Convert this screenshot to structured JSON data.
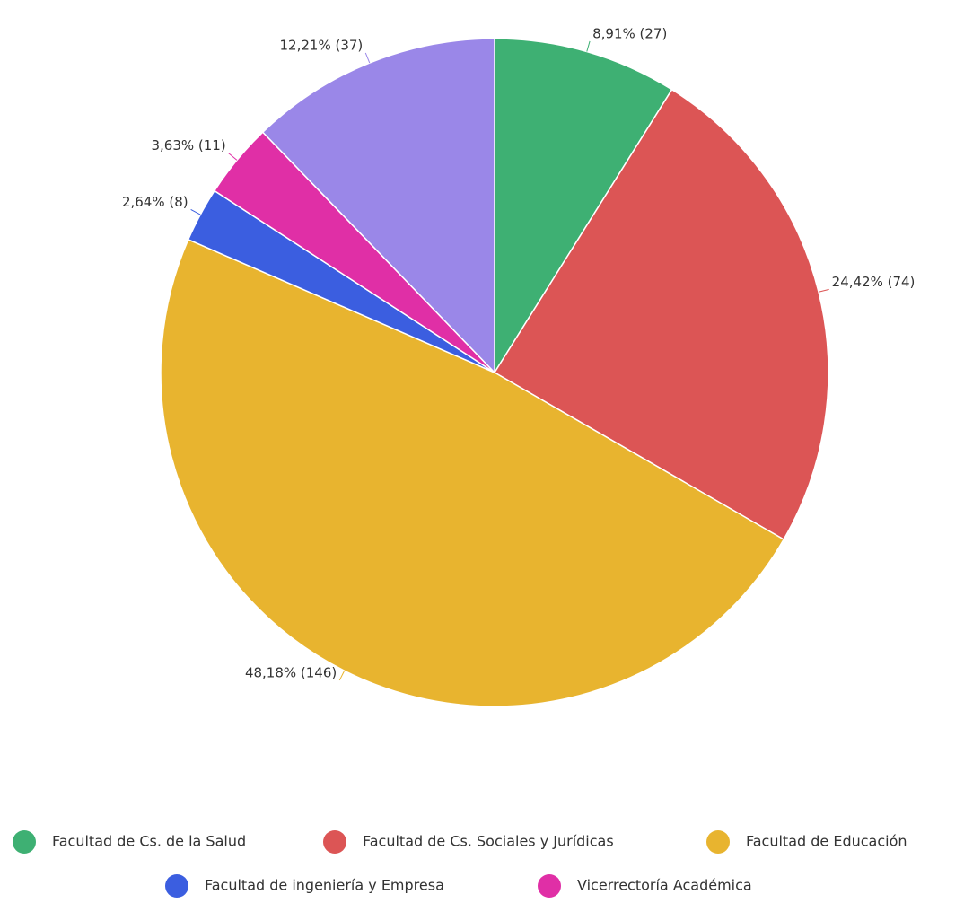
{
  "chart_data": {
    "type": "pie",
    "categories": [
      "Facultad de Cs. de la Salud",
      "Facultad de Cs. Sociales y Jurídicas",
      "Facultad de Educación",
      "Facultad de ingeniería y Empresa",
      "Vicerrectoría Académica",
      null
    ],
    "values": [
      27,
      74,
      146,
      8,
      11,
      37
    ],
    "value_labels": [
      "8,91% (27)",
      "24,42% (74)",
      "48,18% (146)",
      "2,64% (8)",
      "3,63% (11)",
      "12,21% (37)"
    ],
    "colors": [
      "#3eb073",
      "#dc5555",
      "#e8b42f",
      "#3b5ee0",
      "#e02fa6",
      "#9a87e8"
    ],
    "legend": "bottom"
  }
}
